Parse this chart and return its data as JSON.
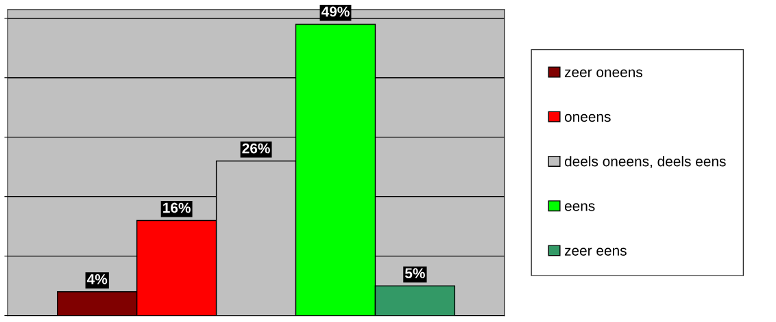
{
  "chart_data": {
    "type": "bar",
    "categories": [
      null
    ],
    "series": [
      {
        "name": "zeer oneens",
        "color": "#800000",
        "values": [
          4
        ],
        "value_labels": [
          "4%"
        ]
      },
      {
        "name": "oneens",
        "color": "#ff0000",
        "values": [
          16
        ],
        "value_labels": [
          "16%"
        ]
      },
      {
        "name": "deels oneens, deels eens",
        "color": "#c0c0c0",
        "values": [
          26
        ],
        "value_labels": [
          "26%"
        ]
      },
      {
        "name": "eens",
        "color": "#00ff00",
        "values": [
          49
        ],
        "value_labels": [
          "49%"
        ]
      },
      {
        "name": "zeer eens",
        "color": "#339966",
        "values": [
          5
        ],
        "value_labels": [
          "5%"
        ]
      }
    ],
    "tick_labels": false,
    "grid": "y",
    "legend": "right"
  }
}
